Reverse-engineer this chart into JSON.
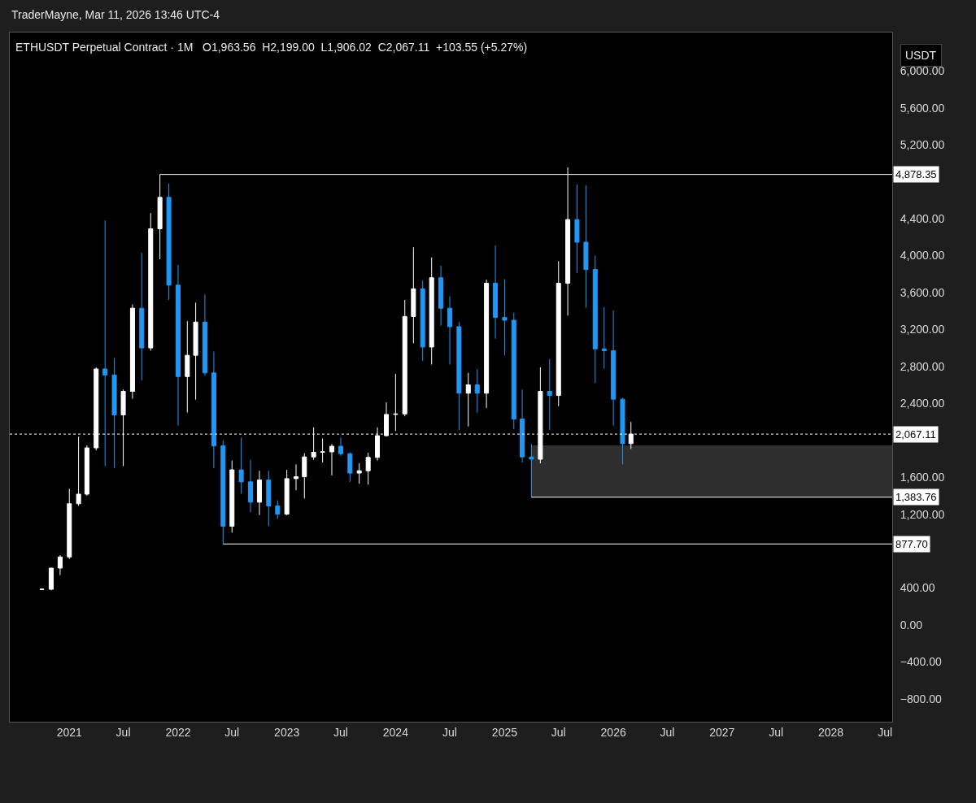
{
  "chart_data": {
    "type": "candlestick",
    "title": "ETHUSDT Perpetual Contract · 1M",
    "subtitle": "O1,963.56  H2,199.00  L1,906.02  C2,067.11  +103.55 (+5.27%)",
    "ylabel": "USDT",
    "annotations": [
      "TraderMayne, Mar 11, 2026 13:46 UTC-4"
    ],
    "x": [
      "2020-10",
      "2020-11",
      "2020-12",
      "2021-01",
      "2021-02",
      "2021-03",
      "2021-04",
      "2021-05",
      "2021-06",
      "2021-07",
      "2021-08",
      "2021-09",
      "2021-10",
      "2021-11",
      "2021-12",
      "2022-01",
      "2022-02",
      "2022-03",
      "2022-04",
      "2022-05",
      "2022-06",
      "2022-07",
      "2022-08",
      "2022-09",
      "2022-10",
      "2022-11",
      "2022-12",
      "2023-01",
      "2023-02",
      "2023-03",
      "2023-04",
      "2023-05",
      "2023-06",
      "2023-07",
      "2023-08",
      "2023-09",
      "2023-10",
      "2023-11",
      "2023-12",
      "2024-01",
      "2024-02",
      "2024-03",
      "2024-04",
      "2024-05",
      "2024-06",
      "2024-07",
      "2024-08",
      "2024-09",
      "2024-10",
      "2024-11",
      "2024-12",
      "2025-01",
      "2025-02",
      "2025-03",
      "2025-04",
      "2025-05",
      "2025-06",
      "2025-07",
      "2025-08",
      "2025-09",
      "2025-10",
      "2025-11",
      "2025-12",
      "2026-01",
      "2026-02",
      "2026-03"
    ],
    "ohlc": [
      [
        386,
        392,
        380,
        387
      ],
      [
        387,
        620,
        375,
        616
      ],
      [
        616,
        755,
        540,
        737
      ],
      [
        737,
        1475,
        714,
        1313
      ],
      [
        1313,
        2040,
        1290,
        1417
      ],
      [
        1417,
        1945,
        1400,
        1918
      ],
      [
        1918,
        2790,
        1890,
        2772
      ],
      [
        2772,
        4380,
        1720,
        2706
      ],
      [
        2706,
        2890,
        1700,
        2275
      ],
      [
        2275,
        2550,
        1720,
        2530
      ],
      [
        2530,
        3470,
        2450,
        3430
      ],
      [
        3430,
        4030,
        2650,
        3000
      ],
      [
        3000,
        4460,
        2970,
        4290
      ],
      [
        4290,
        4878.35,
        3960,
        4630
      ],
      [
        4630,
        4780,
        3520,
        3680
      ],
      [
        3680,
        3900,
        2160,
        2690
      ],
      [
        2690,
        3290,
        2300,
        2920
      ],
      [
        2920,
        3490,
        2440,
        3280
      ],
      [
        3280,
        3580,
        2700,
        2730
      ],
      [
        2730,
        2960,
        1700,
        1940
      ],
      [
        1940,
        2000,
        877.7,
        1070
      ],
      [
        1070,
        1780,
        1000,
        1680
      ],
      [
        1680,
        2030,
        1420,
        1550
      ],
      [
        1550,
        1790,
        1220,
        1330
      ],
      [
        1330,
        1670,
        1190,
        1570
      ],
      [
        1570,
        1670,
        1070,
        1290
      ],
      [
        1290,
        1350,
        1150,
        1200
      ],
      [
        1200,
        1680,
        1190,
        1585
      ],
      [
        1585,
        1740,
        1460,
        1605
      ],
      [
        1605,
        1860,
        1370,
        1820
      ],
      [
        1820,
        2140,
        1790,
        1870
      ],
      [
        1870,
        2020,
        1760,
        1875
      ],
      [
        1875,
        1960,
        1620,
        1935
      ],
      [
        1935,
        2030,
        1830,
        1855
      ],
      [
        1855,
        1870,
        1550,
        1645
      ],
      [
        1645,
        1750,
        1530,
        1670
      ],
      [
        1670,
        1865,
        1520,
        1815
      ],
      [
        1815,
        2140,
        1780,
        2050
      ],
      [
        2050,
        2410,
        2040,
        2280
      ],
      [
        2280,
        2720,
        2100,
        2285
      ],
      [
        2285,
        3520,
        2260,
        3340
      ],
      [
        3340,
        4090,
        3050,
        3640
      ],
      [
        3640,
        3730,
        2860,
        3010
      ],
      [
        3010,
        3980,
        2820,
        3760
      ],
      [
        3760,
        3890,
        3240,
        3430
      ],
      [
        3430,
        3560,
        2820,
        3230
      ],
      [
        3230,
        3280,
        2110,
        2510
      ],
      [
        2510,
        2730,
        2150,
        2600
      ],
      [
        2600,
        2770,
        2300,
        2510
      ],
      [
        2510,
        3740,
        2350,
        3700
      ],
      [
        3700,
        4110,
        3100,
        3330
      ],
      [
        3330,
        3745,
        2920,
        3300
      ],
      [
        3300,
        3380,
        2120,
        2230
      ],
      [
        2230,
        2550,
        1760,
        1820
      ],
      [
        1820,
        1960,
        1383.76,
        1795
      ],
      [
        1795,
        2790,
        1750,
        2530
      ],
      [
        2530,
        2880,
        2110,
        2485
      ],
      [
        2485,
        3940,
        2370,
        3700
      ],
      [
        3700,
        4955,
        3350,
        4390
      ],
      [
        4390,
        4770,
        3810,
        4145
      ],
      [
        4145,
        4760,
        3435,
        3850
      ],
      [
        3850,
        4000,
        2620,
        2990
      ],
      [
        2990,
        3440,
        2775,
        2970
      ],
      [
        2970,
        3405,
        2160,
        2445
      ],
      [
        2445,
        2460,
        1740,
        1963.56
      ],
      [
        1963.56,
        2199,
        1906.02,
        2067.11
      ]
    ],
    "colors": [
      "#ffffff",
      "#ffffff",
      "#ffffff",
      "#ffffff",
      "#ffffff",
      "#ffffff",
      "#ffffff",
      "#2196f3",
      "#2196f3",
      "#ffffff",
      "#ffffff",
      "#2196f3",
      "#ffffff",
      "#ffffff",
      "#2196f3",
      "#2196f3",
      "#ffffff",
      "#ffffff",
      "#2196f3",
      "#2196f3",
      "#2196f3",
      "#ffffff",
      "#2196f3",
      "#2196f3",
      "#ffffff",
      "#2196f3",
      "#2196f3",
      "#ffffff",
      "#ffffff",
      "#ffffff",
      "#ffffff",
      "#ffffff",
      "#ffffff",
      "#2196f3",
      "#2196f3",
      "#ffffff",
      "#ffffff",
      "#ffffff",
      "#ffffff",
      "#ffffff",
      "#ffffff",
      "#ffffff",
      "#2196f3",
      "#ffffff",
      "#2196f3",
      "#2196f3",
      "#2196f3",
      "#ffffff",
      "#2196f3",
      "#ffffff",
      "#2196f3",
      "#2196f3",
      "#2196f3",
      "#2196f3",
      "#2196f3",
      "#ffffff",
      "#2196f3",
      "#ffffff",
      "#ffffff",
      "#2196f3",
      "#2196f3",
      "#2196f3",
      "#2196f3",
      "#2196f3",
      "#2196f3",
      "#ffffff"
    ],
    "xlim": [
      "2020-06-15",
      "2028-07-25"
    ],
    "xticks": [
      {
        "value": "2021-01",
        "label": "2021"
      },
      {
        "value": "2021-07",
        "label": "Jul"
      },
      {
        "value": "2022-01",
        "label": "2022"
      },
      {
        "value": "2022-07",
        "label": "Jul"
      },
      {
        "value": "2023-01",
        "label": "2023"
      },
      {
        "value": "2023-07",
        "label": "Jul"
      },
      {
        "value": "2024-01",
        "label": "2024"
      },
      {
        "value": "2024-07",
        "label": "Jul"
      },
      {
        "value": "2025-01",
        "label": "2025"
      },
      {
        "value": "2025-07",
        "label": "Jul"
      },
      {
        "value": "2026-01",
        "label": "2026"
      },
      {
        "value": "2026-07",
        "label": "Jul"
      },
      {
        "value": "2027-01",
        "label": "2027"
      },
      {
        "value": "2027-07",
        "label": "Jul"
      },
      {
        "value": "2028-01",
        "label": "2028"
      },
      {
        "value": "2028-07",
        "label": "Jul"
      }
    ],
    "ylim": [
      -1047,
      6415
    ],
    "yticks": [
      {
        "value": -800,
        "label": "−800.00"
      },
      {
        "value": -400,
        "label": "−400.00"
      },
      {
        "value": 0,
        "label": "0.00"
      },
      {
        "value": 400,
        "label": "400.00"
      },
      {
        "value": 1200,
        "label": "1,200.00"
      },
      {
        "value": 1600,
        "label": "1,600.00"
      },
      {
        "value": 2400,
        "label": "2,400.00"
      },
      {
        "value": 2800,
        "label": "2,800.00"
      },
      {
        "value": 3200,
        "label": "3,200.00"
      },
      {
        "value": 3600,
        "label": "3,600.00"
      },
      {
        "value": 4000,
        "label": "4,000.00"
      },
      {
        "value": 4400,
        "label": "4,400.00"
      },
      {
        "value": 5200,
        "label": "5,200.00"
      },
      {
        "value": 5600,
        "label": "5,600.00"
      },
      {
        "value": 6000,
        "label": "6,000.00"
      }
    ],
    "ref_lines": [
      {
        "axis": "y",
        "value": 4878.35,
        "label": "4,878.35",
        "color": "#ffffff"
      },
      {
        "axis": "y",
        "value": 2067.11,
        "label": "2,067.11",
        "color": "#ffffff",
        "line_style": "dotted"
      },
      {
        "axis": "y",
        "value": 1383.76,
        "label": "1,383.76",
        "color": "#ffffff"
      },
      {
        "axis": "y",
        "value": 877.7,
        "label": "877.70",
        "color": "#ffffff"
      }
    ],
    "bands": [
      {
        "axis": "y",
        "from": 1383.76,
        "to": 1945,
        "color": "#2e2e2e"
      }
    ],
    "grid": false,
    "legend": false
  }
}
